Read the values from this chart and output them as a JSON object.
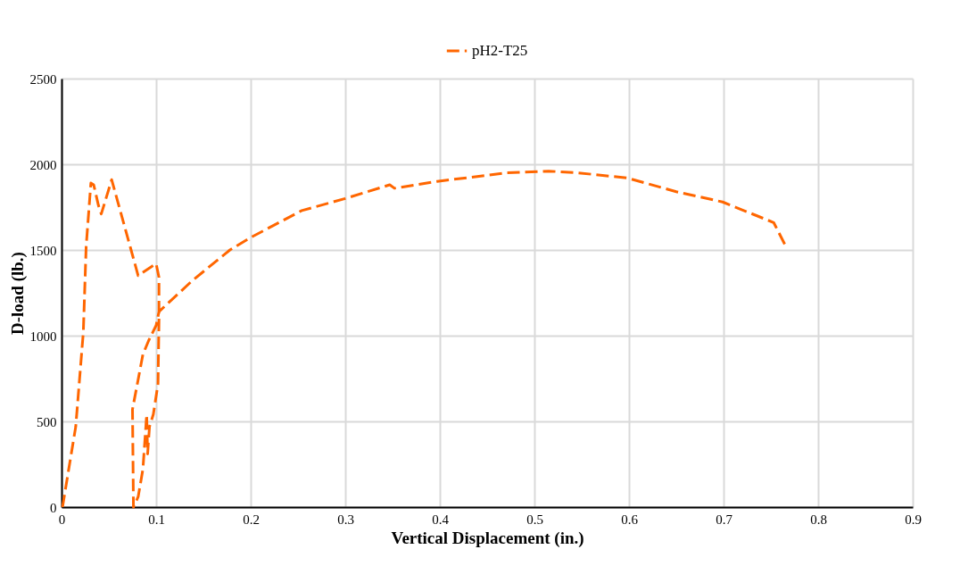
{
  "chart_data": {
    "type": "line",
    "xlabel": "Vertical Displacement (in.)",
    "ylabel": "D-load (lb.)",
    "xlim": [
      0,
      0.9
    ],
    "xticks": [
      0,
      0.1,
      0.2,
      0.3,
      0.4,
      0.5,
      0.6,
      0.7,
      0.8,
      0.9
    ],
    "ylim": [
      0,
      2500
    ],
    "yticks": [
      0,
      500,
      1000,
      1500,
      2000,
      2500
    ],
    "grid": true,
    "legend": "top",
    "line_style": "dashed",
    "marker": "none",
    "series": [
      {
        "name": "pH2-T25",
        "color": "#ff6600",
        "x": [
          0.001,
          0.015,
          0.023,
          0.026,
          0.031,
          0.034,
          0.039,
          0.042,
          0.053,
          0.056,
          0.075,
          0.081,
          0.089,
          0.1,
          0.103,
          0.103,
          0.102,
          0.097,
          0.093,
          0.091,
          0.09,
          0.086,
          0.081,
          0.076,
          0.075,
          0.086,
          0.092,
          0.1,
          0.103,
          0.138,
          0.178,
          0.199,
          0.254,
          0.3,
          0.347,
          0.352,
          0.397,
          0.471,
          0.515,
          0.546,
          0.598,
          0.65,
          0.699,
          0.753,
          0.765
        ],
        "values": [
          0,
          470,
          1020,
          1520,
          1890,
          1880,
          1760,
          1710,
          1910,
          1850,
          1470,
          1350,
          1380,
          1420,
          1340,
          1090,
          720,
          540,
          470,
          310,
          540,
          220,
          60,
          0,
          570,
          890,
          970,
          1060,
          1140,
          1320,
          1500,
          1570,
          1730,
          1800,
          1880,
          1860,
          1900,
          1950,
          1960,
          1950,
          1920,
          1840,
          1780,
          1660,
          1530
        ]
      }
    ]
  }
}
